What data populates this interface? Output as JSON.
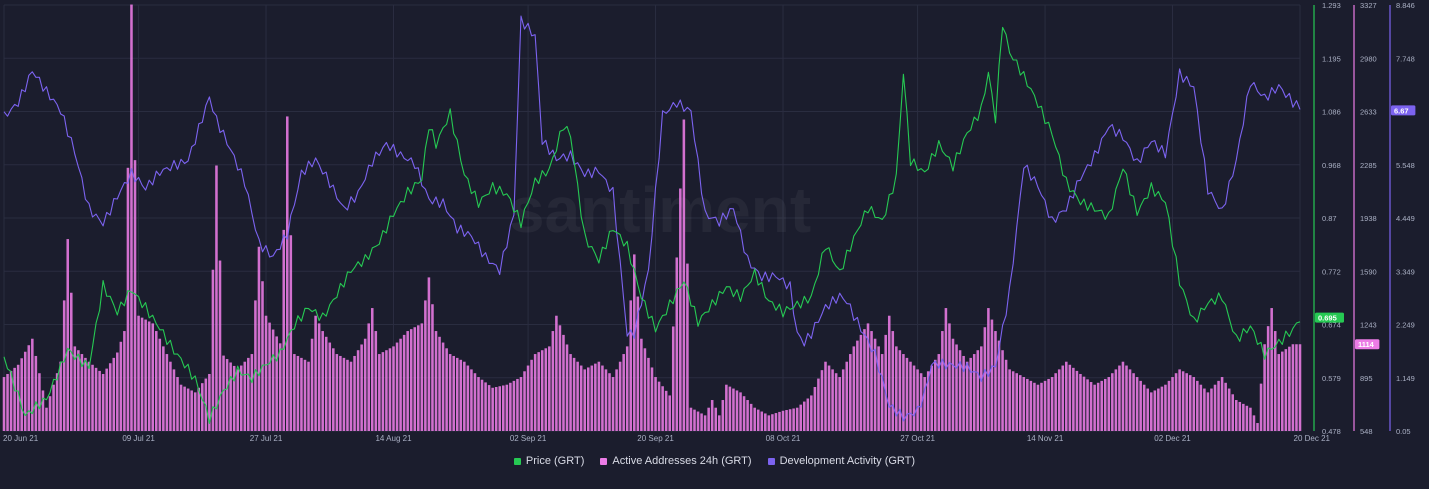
{
  "chart_data": {
    "type": "line",
    "title": "",
    "watermark": "santiment",
    "x_tick_labels": [
      "20 Jun 21",
      "09 Jul 21",
      "27 Jul 21",
      "14 Aug 21",
      "02 Sep 21",
      "20 Sep 21",
      "08 Oct 21",
      "27 Oct 21",
      "14 Nov 21",
      "02 Dec 21",
      "20 Dec 21"
    ],
    "x_tick_days": [
      0,
      19,
      37,
      55,
      74,
      92,
      110,
      129,
      147,
      165,
      183
    ],
    "x_range_days": [
      0,
      183
    ],
    "grid": true,
    "legend_position": "bottom-center",
    "axes": {
      "price": {
        "range": [
          0.478,
          1.293
        ],
        "ticks": [
          "1.293",
          "1.195",
          "1.086",
          "0.968",
          "0.87",
          "0.772",
          "0.674",
          "0.579",
          "0.478"
        ],
        "current_value": "0.695",
        "color": "#26c953"
      },
      "active_addresses": {
        "range": [
          548,
          3327
        ],
        "ticks": [
          "3327",
          "2980",
          "2633",
          "2285",
          "1938",
          "1590",
          "1243",
          "895",
          "548"
        ],
        "current_value": "1114",
        "color": "#ec7ce6"
      },
      "development_activity": {
        "range": [
          0.05,
          8.846
        ],
        "ticks": [
          "8.846",
          "7.748",
          "6.647",
          "5.548",
          "4.449",
          "3.349",
          "2.249",
          "1.149",
          "0.05"
        ],
        "current_value": "6.67",
        "color": "#7c63f0"
      }
    },
    "series": [
      {
        "name": "Price (GRT)",
        "kind": "line",
        "axis": "price",
        "color": "#26c953",
        "points": [
          [
            0,
            0.62
          ],
          [
            3,
            0.5
          ],
          [
            6,
            0.54
          ],
          [
            9,
            0.64
          ],
          [
            12,
            0.6
          ],
          [
            14,
            0.75
          ],
          [
            16,
            0.7
          ],
          [
            18,
            0.75
          ],
          [
            20,
            0.72
          ],
          [
            22,
            0.68
          ],
          [
            24,
            0.63
          ],
          [
            27,
            0.57
          ],
          [
            29,
            0.5
          ],
          [
            31,
            0.56
          ],
          [
            33,
            0.6
          ],
          [
            35,
            0.58
          ],
          [
            37,
            0.6
          ],
          [
            39,
            0.62
          ],
          [
            41,
            0.68
          ],
          [
            43,
            0.72
          ],
          [
            45,
            0.7
          ],
          [
            47,
            0.74
          ],
          [
            49,
            0.78
          ],
          [
            51,
            0.8
          ],
          [
            53,
            0.84
          ],
          [
            55,
            0.9
          ],
          [
            57,
            0.94
          ],
          [
            59,
            0.96
          ],
          [
            60,
            1.06
          ],
          [
            61,
            1.02
          ],
          [
            63,
            1.08
          ],
          [
            65,
            0.97
          ],
          [
            67,
            0.92
          ],
          [
            69,
            0.95
          ],
          [
            71,
            0.93
          ],
          [
            73,
            0.87
          ],
          [
            75,
            0.95
          ],
          [
            77,
            0.98
          ],
          [
            79,
            1.07
          ],
          [
            80,
            1.05
          ],
          [
            82,
            0.85
          ],
          [
            84,
            0.8
          ],
          [
            86,
            0.86
          ],
          [
            88,
            0.83
          ],
          [
            90,
            0.74
          ],
          [
            92,
            0.68
          ],
          [
            94,
            0.72
          ],
          [
            96,
            0.76
          ],
          [
            98,
            0.68
          ],
          [
            100,
            0.72
          ],
          [
            102,
            0.76
          ],
          [
            104,
            0.74
          ],
          [
            106,
            0.78
          ],
          [
            108,
            0.72
          ],
          [
            110,
            0.7
          ],
          [
            112,
            0.72
          ],
          [
            114,
            0.74
          ],
          [
            116,
            0.84
          ],
          [
            118,
            0.78
          ],
          [
            120,
            0.84
          ],
          [
            122,
            0.9
          ],
          [
            124,
            0.88
          ],
          [
            126,
            0.97
          ],
          [
            127,
            1.17
          ],
          [
            128,
            1.0
          ],
          [
            130,
            0.97
          ],
          [
            132,
            1.02
          ],
          [
            134,
            0.98
          ],
          [
            136,
            1.05
          ],
          [
            138,
            1.1
          ],
          [
            139,
            1.17
          ],
          [
            140,
            1.08
          ],
          [
            141,
            1.26
          ],
          [
            142,
            1.2
          ],
          [
            144,
            1.15
          ],
          [
            146,
            1.1
          ],
          [
            148,
            1.05
          ],
          [
            150,
            0.96
          ],
          [
            152,
            0.92
          ],
          [
            154,
            0.9
          ],
          [
            156,
            0.88
          ],
          [
            158,
            0.98
          ],
          [
            160,
            0.9
          ],
          [
            162,
            0.95
          ],
          [
            164,
            0.92
          ],
          [
            166,
            0.76
          ],
          [
            168,
            0.68
          ],
          [
            170,
            0.72
          ],
          [
            172,
            0.74
          ],
          [
            174,
            0.66
          ],
          [
            176,
            0.68
          ],
          [
            178,
            0.62
          ],
          [
            180,
            0.64
          ],
          [
            182,
            0.67
          ],
          [
            183,
            0.695
          ]
        ]
      },
      {
        "name": "Active Addresses 24h (GRT)",
        "kind": "bars",
        "axis": "active_addresses",
        "color": "#ec7ce6",
        "points": [
          [
            0,
            900
          ],
          [
            2,
            980
          ],
          [
            4,
            1150
          ],
          [
            6,
            700
          ],
          [
            8,
            1000
          ],
          [
            9,
            1800
          ],
          [
            10,
            1100
          ],
          [
            12,
            1000
          ],
          [
            14,
            920
          ],
          [
            16,
            1060
          ],
          [
            17,
            1200
          ],
          [
            18,
            3330
          ],
          [
            19,
            1300
          ],
          [
            21,
            1250
          ],
          [
            23,
            1050
          ],
          [
            25,
            850
          ],
          [
            27,
            800
          ],
          [
            29,
            920
          ],
          [
            30,
            2280
          ],
          [
            31,
            1040
          ],
          [
            33,
            950
          ],
          [
            35,
            1050
          ],
          [
            36,
            1750
          ],
          [
            37,
            1300
          ],
          [
            39,
            1120
          ],
          [
            40,
            2600
          ],
          [
            41,
            1050
          ],
          [
            43,
            1000
          ],
          [
            44,
            1300
          ],
          [
            45,
            1200
          ],
          [
            47,
            1050
          ],
          [
            49,
            1000
          ],
          [
            51,
            1150
          ],
          [
            52,
            1350
          ],
          [
            53,
            1050
          ],
          [
            55,
            1100
          ],
          [
            57,
            1200
          ],
          [
            59,
            1250
          ],
          [
            60,
            1550
          ],
          [
            61,
            1200
          ],
          [
            63,
            1050
          ],
          [
            65,
            1000
          ],
          [
            67,
            900
          ],
          [
            69,
            830
          ],
          [
            71,
            850
          ],
          [
            73,
            900
          ],
          [
            75,
            1050
          ],
          [
            77,
            1100
          ],
          [
            78,
            1300
          ],
          [
            80,
            1050
          ],
          [
            82,
            950
          ],
          [
            84,
            1000
          ],
          [
            86,
            900
          ],
          [
            88,
            1100
          ],
          [
            89,
            1700
          ],
          [
            90,
            1150
          ],
          [
            92,
            900
          ],
          [
            94,
            780
          ],
          [
            96,
            2580
          ],
          [
            97,
            700
          ],
          [
            99,
            650
          ],
          [
            100,
            750
          ],
          [
            101,
            650
          ],
          [
            102,
            850
          ],
          [
            104,
            800
          ],
          [
            106,
            700
          ],
          [
            108,
            650
          ],
          [
            110,
            680
          ],
          [
            112,
            700
          ],
          [
            114,
            780
          ],
          [
            116,
            1000
          ],
          [
            118,
            900
          ],
          [
            120,
            1100
          ],
          [
            122,
            1250
          ],
          [
            124,
            1050
          ],
          [
            125,
            1300
          ],
          [
            126,
            1100
          ],
          [
            128,
            1000
          ],
          [
            130,
            900
          ],
          [
            132,
            1050
          ],
          [
            133,
            1350
          ],
          [
            134,
            1150
          ],
          [
            136,
            1000
          ],
          [
            138,
            1100
          ],
          [
            139,
            1350
          ],
          [
            140,
            1200
          ],
          [
            142,
            950
          ],
          [
            144,
            900
          ],
          [
            146,
            850
          ],
          [
            148,
            900
          ],
          [
            150,
            1000
          ],
          [
            152,
            920
          ],
          [
            154,
            850
          ],
          [
            156,
            900
          ],
          [
            158,
            1000
          ],
          [
            160,
            900
          ],
          [
            162,
            800
          ],
          [
            164,
            850
          ],
          [
            166,
            950
          ],
          [
            168,
            900
          ],
          [
            170,
            800
          ],
          [
            172,
            900
          ],
          [
            174,
            750
          ],
          [
            176,
            700
          ],
          [
            177,
            600
          ],
          [
            178,
            1114
          ],
          [
            179,
            1350
          ],
          [
            180,
            1050
          ],
          [
            182,
            1114
          ],
          [
            183,
            1114
          ]
        ]
      },
      {
        "name": "Development Activity (GRT)",
        "kind": "line",
        "axis": "development_activity",
        "color": "#7c63f0",
        "points": [
          [
            0,
            6.6
          ],
          [
            2,
            6.9
          ],
          [
            4,
            7.5
          ],
          [
            6,
            7.0
          ],
          [
            8,
            6.6
          ],
          [
            10,
            5.8
          ],
          [
            12,
            4.7
          ],
          [
            14,
            4.4
          ],
          [
            16,
            4.9
          ],
          [
            18,
            5.3
          ],
          [
            20,
            5.0
          ],
          [
            22,
            5.4
          ],
          [
            24,
            5.6
          ],
          [
            26,
            5.7
          ],
          [
            28,
            6.5
          ],
          [
            29,
            6.9
          ],
          [
            30,
            6.4
          ],
          [
            32,
            5.8
          ],
          [
            34,
            5.2
          ],
          [
            36,
            4.0
          ],
          [
            38,
            3.7
          ],
          [
            40,
            4.1
          ],
          [
            42,
            5.3
          ],
          [
            44,
            5.6
          ],
          [
            46,
            5.2
          ],
          [
            48,
            4.7
          ],
          [
            50,
            5.0
          ],
          [
            52,
            5.6
          ],
          [
            54,
            5.9
          ],
          [
            56,
            5.7
          ],
          [
            58,
            5.6
          ],
          [
            60,
            4.9
          ],
          [
            62,
            4.8
          ],
          [
            64,
            4.2
          ],
          [
            66,
            4.0
          ],
          [
            68,
            3.6
          ],
          [
            70,
            3.4
          ],
          [
            72,
            4.6
          ],
          [
            73,
            8.6
          ],
          [
            75,
            8.2
          ],
          [
            76,
            6.0
          ],
          [
            78,
            5.6
          ],
          [
            80,
            5.7
          ],
          [
            82,
            5.4
          ],
          [
            84,
            5.5
          ],
          [
            86,
            5.0
          ],
          [
            88,
            2.0
          ],
          [
            89,
            2.0
          ],
          [
            91,
            3.3
          ],
          [
            93,
            6.6
          ],
          [
            95,
            6.9
          ],
          [
            97,
            6.7
          ],
          [
            99,
            4.5
          ],
          [
            101,
            4.3
          ],
          [
            103,
            4.6
          ],
          [
            105,
            3.6
          ],
          [
            107,
            3.3
          ],
          [
            109,
            3.3
          ],
          [
            111,
            3.0
          ],
          [
            112,
            2.0
          ],
          [
            113,
            1.8
          ],
          [
            114,
            2.0
          ],
          [
            116,
            2.6
          ],
          [
            118,
            2.9
          ],
          [
            119,
            2.8
          ],
          [
            121,
            2.2
          ],
          [
            123,
            1.6
          ],
          [
            125,
            0.5
          ],
          [
            127,
            0.3
          ],
          [
            129,
            0.5
          ],
          [
            130,
            0.9
          ],
          [
            131,
            1.5
          ],
          [
            132,
            1.5
          ],
          [
            134,
            1.4
          ],
          [
            136,
            1.3
          ],
          [
            138,
            1.1
          ],
          [
            140,
            1.4
          ],
          [
            142,
            3.0
          ],
          [
            144,
            5.6
          ],
          [
            146,
            5.1
          ],
          [
            148,
            4.3
          ],
          [
            150,
            4.6
          ],
          [
            152,
            5.3
          ],
          [
            154,
            5.8
          ],
          [
            156,
            6.4
          ],
          [
            158,
            6.1
          ],
          [
            160,
            5.5
          ],
          [
            162,
            6.0
          ],
          [
            164,
            5.8
          ],
          [
            166,
            7.5
          ],
          [
            168,
            7.2
          ],
          [
            170,
            5.0
          ],
          [
            172,
            4.5
          ],
          [
            174,
            5.6
          ],
          [
            176,
            7.3
          ],
          [
            178,
            7.0
          ],
          [
            180,
            7.2
          ],
          [
            182,
            6.8
          ],
          [
            183,
            6.67
          ]
        ]
      }
    ]
  }
}
